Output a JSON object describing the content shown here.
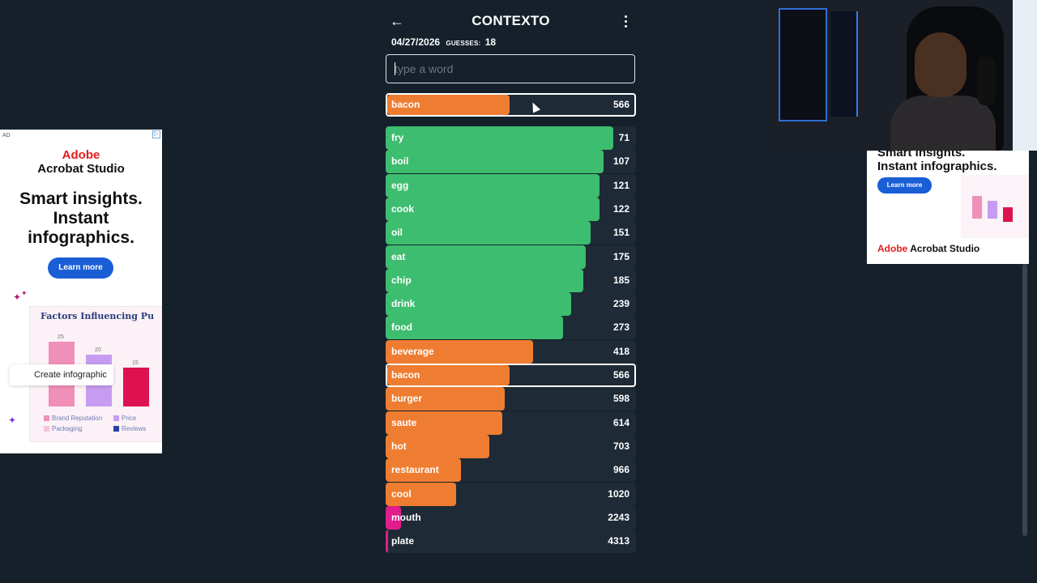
{
  "app": {
    "title": "CONTEXTO",
    "date": "04/27/2026",
    "guesses_label": "GUESSES:",
    "guesses_count": "18",
    "input_placeholder": "type a word"
  },
  "latest_guess": {
    "word": "bacon",
    "rank": "566",
    "color": "orange",
    "fill": 0.49
  },
  "guesses": [
    {
      "word": "fry",
      "rank": "71",
      "color": "green",
      "fill": 0.91
    },
    {
      "word": "boil",
      "rank": "107",
      "color": "green",
      "fill": 0.87
    },
    {
      "word": "egg",
      "rank": "121",
      "color": "green",
      "fill": 0.855
    },
    {
      "word": "cook",
      "rank": "122",
      "color": "green",
      "fill": 0.855
    },
    {
      "word": "oil",
      "rank": "151",
      "color": "green",
      "fill": 0.82
    },
    {
      "word": "eat",
      "rank": "175",
      "color": "green",
      "fill": 0.8
    },
    {
      "word": "chip",
      "rank": "185",
      "color": "green",
      "fill": 0.79
    },
    {
      "word": "drink",
      "rank": "239",
      "color": "green",
      "fill": 0.74
    },
    {
      "word": "food",
      "rank": "273",
      "color": "green",
      "fill": 0.71
    },
    {
      "word": "beverage",
      "rank": "418",
      "color": "orange",
      "fill": 0.59
    },
    {
      "word": "bacon",
      "rank": "566",
      "color": "orange",
      "fill": 0.49,
      "highlight": true
    },
    {
      "word": "burger",
      "rank": "598",
      "color": "orange",
      "fill": 0.475
    },
    {
      "word": "saute",
      "rank": "614",
      "color": "orange",
      "fill": 0.465
    },
    {
      "word": "hot",
      "rank": "703",
      "color": "orange",
      "fill": 0.415
    },
    {
      "word": "restaurant",
      "rank": "966",
      "color": "orange",
      "fill": 0.3
    },
    {
      "word": "cool",
      "rank": "1020",
      "color": "orange",
      "fill": 0.28
    },
    {
      "word": "mouth",
      "rank": "2243",
      "color": "pink",
      "fill": 0.06
    },
    {
      "word": "plate",
      "rank": "4313",
      "color": "pink",
      "fill": 0.01
    }
  ],
  "ad_left": {
    "tag": "AD",
    "close": "▷",
    "brand_line1": "Adobe",
    "brand_line2": "Acrobat Studio",
    "headline": "Smart insights. Instant infographics.",
    "cta": "Learn more",
    "card_title": "Factors Influencing Pu",
    "bar_values": [
      "25",
      "20",
      "15"
    ],
    "pill": "Create infographic",
    "legend": [
      "Brand Reputation",
      "Price",
      "Packaging",
      "Reviews"
    ]
  },
  "ad_right": {
    "headline_line1": "Smart insights.",
    "headline_line2": "Instant infographics.",
    "cta": "Learn more",
    "brand_adobe": "Adobe",
    "brand_rest": " Acrobat Studio"
  },
  "colors": {
    "green": "#3dbd6f",
    "orange": "#ef7d31",
    "pink": "#e11d8c",
    "background": "#15202b"
  }
}
